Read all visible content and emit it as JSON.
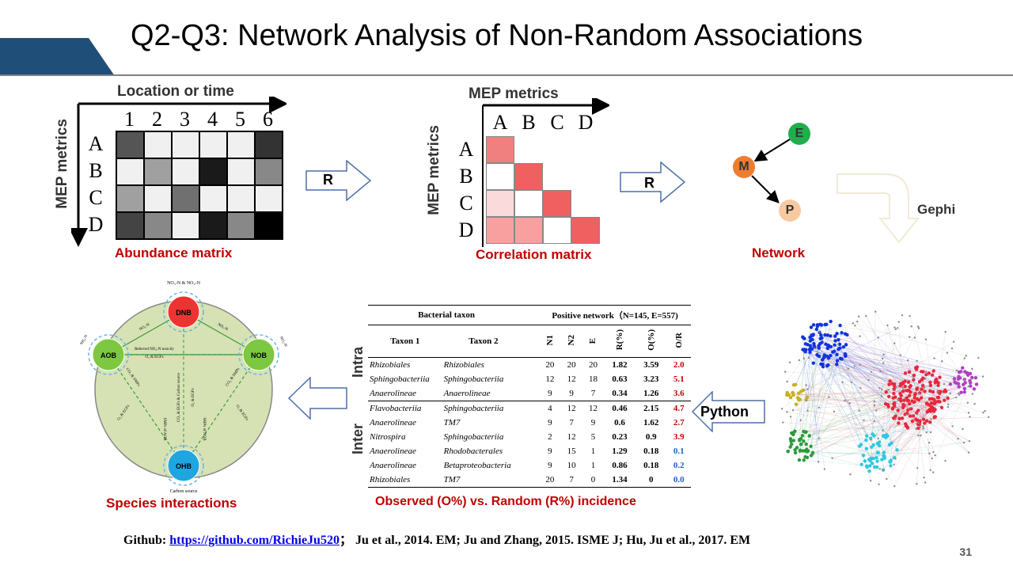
{
  "title": "Q2-Q3: Network Analysis of Non-Random Associations",
  "abundance": {
    "x_axis": "Location or time",
    "y_axis": "MEP metrics",
    "cols": [
      "1",
      "2",
      "3",
      "4",
      "5",
      "6"
    ],
    "rows": [
      "A",
      "B",
      "C",
      "D"
    ],
    "shades": [
      [
        "#555555",
        "#f0f0f0",
        "#f0f0f0",
        "#f0f0f0",
        "#f0f0f0",
        "#333333"
      ],
      [
        "#f0f0f0",
        "#a0a0a0",
        "#f0f0f0",
        "#1a1a1a",
        "#f0f0f0",
        "#888888"
      ],
      [
        "#a0a0a0",
        "#f0f0f0",
        "#707070",
        "#f0f0f0",
        "#f0f0f0",
        "#f0f0f0"
      ],
      [
        "#444444",
        "#888888",
        "#f0f0f0",
        "#1a1a1a",
        "#888888",
        "#000000"
      ]
    ],
    "caption": "Abundance matrix"
  },
  "correlation": {
    "x_axis": "MEP metrics",
    "y_axis": "MEP metrics",
    "cols": [
      "A",
      "B",
      "C",
      "D"
    ],
    "rows": [
      "A",
      "B",
      "C",
      "D"
    ],
    "shades": [
      [
        "#f08080",
        "",
        "",
        ""
      ],
      [
        "#ffffff",
        "#f06060",
        "",
        ""
      ],
      [
        "#fadada",
        "#ffffff",
        "#f06060",
        ""
      ],
      [
        "#f8a0a0",
        "#f8a0a0",
        "#ffffff",
        "#f06060"
      ]
    ],
    "caption": "Correlation matrix"
  },
  "arrow1_label": "R",
  "arrow2_label": "R",
  "network": {
    "nodes": [
      "E",
      "M",
      "P"
    ],
    "caption": "Network",
    "colors": {
      "E": "#1fae4b",
      "M": "#ed7d31",
      "P": "#f8c9a0"
    }
  },
  "gephi_label": "Gephi",
  "python_label": "Python",
  "species": {
    "caption": "Species interactions",
    "nodes": [
      "DNB",
      "AOB",
      "NOB",
      "OHB"
    ],
    "top_label": "NO₃-N & NO₂-N",
    "bottom_label": "Carbon source",
    "left_label": "NH₄-N",
    "right_label": "NO₂-N",
    "edge_labels": [
      "Relieved NO₂-N toxicity",
      "O₂ & EGFs",
      "CO₂ & EGFs & Carbon source",
      "O₂ & EGFs",
      "SMPs of AOB",
      "SMPs of NOB",
      "O₂ & EGFs",
      "CO₂ & SMPs",
      "CO₂ & SMPs",
      "NO₃-N",
      "NO₂-N"
    ],
    "colors": {
      "DNB": "#ee3333",
      "AOB": "#7cc840",
      "NOB": "#7cc840",
      "OHB": "#1fa6e0",
      "bg": "#d6e2b4"
    }
  },
  "table": {
    "header_taxon": "Bacterial taxon",
    "header_net": "Positive network（N=145, E=557)",
    "col_taxon1": "Taxon 1",
    "col_taxon2": "Taxon 2",
    "col_n1": "N1",
    "col_n2": "N2",
    "col_e": "E",
    "col_r": "R(%)",
    "col_o": "O(%)",
    "col_or": "O/R",
    "group_intra": "Intra",
    "group_inter": "Inter",
    "intra_rows": [
      {
        "t1": "Rhizobiales",
        "t2": "Rhizobiales",
        "n1": "20",
        "n2": "20",
        "e": "20",
        "r": "1.82",
        "o": "3.59",
        "or": "2.0",
        "c": "red"
      },
      {
        "t1": "Sphingobacteriia",
        "t2": "Sphingobacteriia",
        "n1": "12",
        "n2": "12",
        "e": "18",
        "r": "0.63",
        "o": "3.23",
        "or": "5.1",
        "c": "red"
      },
      {
        "t1": "Anaerolineae",
        "t2": "Anaerolineae",
        "n1": "9",
        "n2": "9",
        "e": "7",
        "r": "0.34",
        "o": "1.26",
        "or": "3.6",
        "c": "red"
      }
    ],
    "inter_rows": [
      {
        "t1": "Flavobacteriia",
        "t2": "Sphingobacteriia",
        "n1": "4",
        "n2": "12",
        "e": "12",
        "r": "0.46",
        "o": "2.15",
        "or": "4.7",
        "c": "red"
      },
      {
        "t1": "Anaerolineae",
        "t2": "TM7",
        "n1": "9",
        "n2": "7",
        "e": "9",
        "r": "0.6",
        "o": "1.62",
        "or": "2.7",
        "c": "red"
      },
      {
        "t1": "Nitrospira",
        "t2": "Sphingobacteriia",
        "n1": "2",
        "n2": "12",
        "e": "5",
        "r": "0.23",
        "o": "0.9",
        "or": "3.9",
        "c": "red"
      },
      {
        "t1": "Anaerolineae",
        "t2": "Rhodobacterales",
        "n1": "9",
        "n2": "15",
        "e": "1",
        "r": "1.29",
        "o": "0.18",
        "or": "0.1",
        "c": "blue"
      },
      {
        "t1": "Anaerolineae",
        "t2": "Betaproteobacteria",
        "n1": "9",
        "n2": "10",
        "e": "1",
        "r": "0.86",
        "o": "0.18",
        "or": "0.2",
        "c": "blue"
      },
      {
        "t1": "Rhizobiales",
        "t2": "TM7",
        "n1": "20",
        "n2": "7",
        "e": "0",
        "r": "1.34",
        "o": "0",
        "or": "0.0",
        "c": "blue"
      }
    ],
    "caption": "Observed (O%) vs. Random (R%)  incidence"
  },
  "footer": {
    "prefix": "Github: ",
    "link": "https://github.com/RichieJu520",
    "suffix": "；    Ju et al., 2014. EM; Ju and Zhang, 2015. ISME J; Hu, Ju et al., 2017. EM"
  },
  "page_number": "31"
}
